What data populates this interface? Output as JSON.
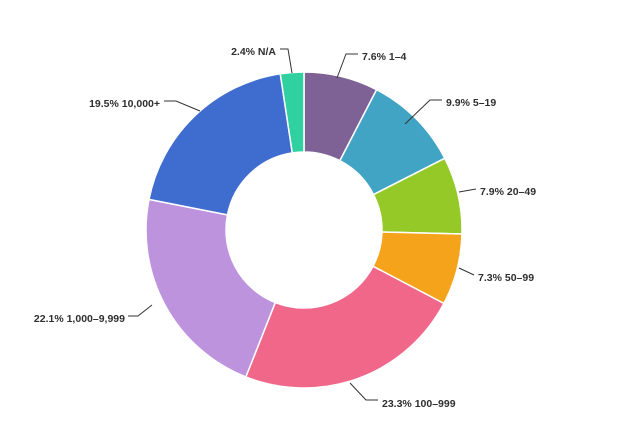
{
  "chart_data": {
    "type": "pie",
    "subtype": "donut",
    "title": "",
    "slices": [
      {
        "label": "1–4",
        "value": 7.6,
        "display": "7.6% 1–4",
        "color": "#7e6295"
      },
      {
        "label": "5–19",
        "value": 9.9,
        "display": "9.9% 5–19",
        "color": "#41a4c4"
      },
      {
        "label": "20–49",
        "value": 7.9,
        "display": "7.9% 20–49",
        "color": "#95c927"
      },
      {
        "label": "50–99",
        "value": 7.3,
        "display": "7.3% 50–99",
        "color": "#f5a31a"
      },
      {
        "label": "100–999",
        "value": 23.3,
        "display": "23.3% 100–999",
        "color": "#f0678a"
      },
      {
        "label": "1,000–9,999",
        "value": 22.1,
        "display": "22.1% 1,000–9,999",
        "color": "#bd93de"
      },
      {
        "label": "10,000+",
        "value": 19.5,
        "display": "19.5% 10,000+",
        "color": "#3f6ccf"
      },
      {
        "label": "N/A",
        "value": 2.4,
        "display": "2.4% N/A",
        "color": "#30d0a0"
      }
    ]
  }
}
